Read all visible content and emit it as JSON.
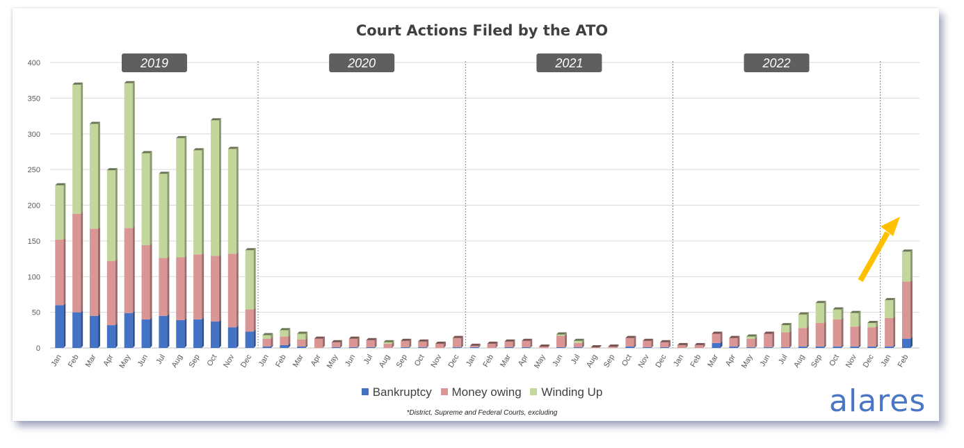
{
  "brand": "alares",
  "footnote": "*District, Supreme and Federal Courts, excluding",
  "colors": {
    "bankruptcy": "#4472c4",
    "money_owing": "#d99694",
    "winding_up": "#c3d69b",
    "year_label_bg": "#5f5f5f",
    "arrow": "#ffc000"
  },
  "chart_data": {
    "type": "bar",
    "stacked": true,
    "title": "Court Actions Filed by the ATO",
    "ylim": [
      0,
      400
    ],
    "yticks": [
      0,
      50,
      100,
      150,
      200,
      250,
      300,
      350,
      400
    ],
    "grid": true,
    "legend_position": "bottom",
    "years": [
      {
        "label": "2019",
        "months": 12
      },
      {
        "label": "2020",
        "months": 12
      },
      {
        "label": "2021",
        "months": 12
      },
      {
        "label": "2022",
        "months": 12
      },
      {
        "label": "",
        "months": 2
      }
    ],
    "categories": [
      "Jan",
      "Feb",
      "Mar",
      "Apr",
      "May",
      "Jun",
      "Jul",
      "Aug",
      "Sep",
      "Oct",
      "Nov",
      "Dec",
      "Jan",
      "Feb",
      "Mar",
      "Apr",
      "May",
      "Jun",
      "Jul",
      "Aug",
      "Sep",
      "Oct",
      "Nov",
      "Dec",
      "Jan",
      "Feb",
      "Mar",
      "Apr",
      "May",
      "Jun",
      "Jul",
      "Aug",
      "Sep",
      "Oct",
      "Nov",
      "Dec",
      "Jan",
      "Feb",
      "Mar",
      "Apr",
      "May",
      "Jun",
      "Jul",
      "Aug",
      "Sep",
      "Oct",
      "Nov",
      "Dec",
      "Jan",
      "Feb"
    ],
    "series": [
      {
        "name": "Bankruptcy",
        "color": "#4472c4",
        "values": [
          60,
          50,
          45,
          32,
          49,
          40,
          45,
          39,
          40,
          37,
          29,
          23,
          2,
          4,
          2,
          0,
          1,
          1,
          1,
          0,
          1,
          1,
          0,
          1,
          1,
          0,
          1,
          1,
          0,
          1,
          1,
          0,
          0,
          2,
          1,
          1,
          0,
          0,
          7,
          2,
          1,
          1,
          1,
          2,
          2,
          2,
          2,
          2,
          2,
          13
        ]
      },
      {
        "name": "Money owing",
        "color": "#d99694",
        "values": [
          92,
          138,
          122,
          90,
          119,
          104,
          81,
          88,
          91,
          92,
          103,
          31,
          11,
          12,
          10,
          13,
          7,
          12,
          10,
          6,
          9,
          8,
          6,
          13,
          2,
          6,
          8,
          9,
          2,
          16,
          6,
          1,
          2,
          12,
          9,
          7,
          4,
          4,
          13,
          12,
          12,
          19,
          21,
          26,
          33,
          38,
          28,
          27,
          40,
          80
        ]
      },
      {
        "name": "Winding Up",
        "color": "#c3d69b",
        "values": [
          76,
          181,
          147,
          127,
          203,
          129,
          118,
          167,
          146,
          190,
          147,
          83,
          5,
          9,
          8,
          0,
          0,
          0,
          0,
          2,
          0,
          0,
          0,
          0,
          0,
          0,
          0,
          0,
          0,
          2,
          3,
          0,
          0,
          0,
          0,
          0,
          0,
          0,
          0,
          0,
          3,
          0,
          10,
          19,
          28,
          14,
          19,
          6,
          25,
          42
        ]
      }
    ]
  }
}
